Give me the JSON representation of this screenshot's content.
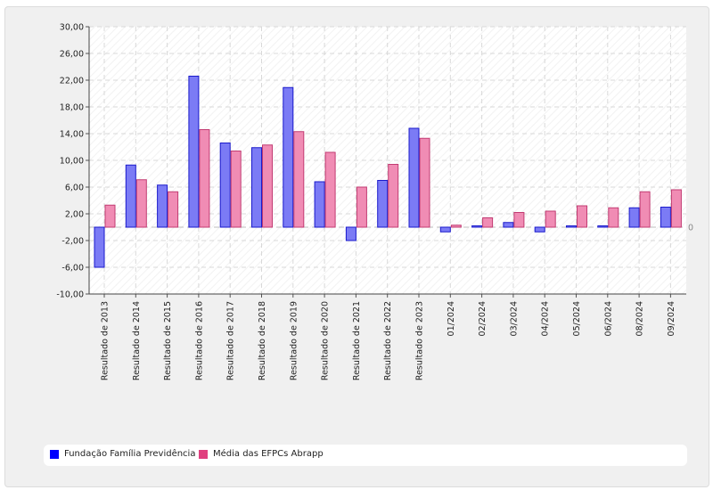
{
  "chart_data": {
    "type": "bar",
    "title": "",
    "xlabel": "",
    "ylabel": "",
    "ylim": [
      -10,
      30
    ],
    "yticks": [
      "30,00",
      "26,00",
      "22,00",
      "18,00",
      "14,00",
      "10,00",
      "6,00",
      "2,00",
      "-2,00",
      "-6,00",
      "-10,00"
    ],
    "baseline_label": "0",
    "categories": [
      "Resultado de 2013",
      "Resultado de 2014",
      "Resultado de 2015",
      "Resultado de 2016",
      "Resultado de 2017",
      "Resultado de 2018",
      "Resultado de 2019",
      "Resultado de 2020",
      "Resultado de 2021",
      "Resultado de 2022",
      "Resultado de 2023",
      "01/2024",
      "02/2024",
      "03/2024",
      "04/2024",
      "05/2024",
      "06/2024",
      "08/2024",
      "09/2024"
    ],
    "series": [
      {
        "name": "Fundação Família Previdência",
        "color": "#0000ff",
        "values": [
          -6.0,
          9.3,
          6.3,
          22.6,
          12.6,
          11.9,
          20.9,
          6.8,
          -2.0,
          7.0,
          14.8,
          -0.7,
          0.2,
          0.7,
          -0.7,
          0.2,
          0.2,
          2.9,
          3.0
        ]
      },
      {
        "name": "Média das EFPCs Abrapp",
        "color": "#e0407f",
        "values": [
          3.3,
          7.1,
          5.3,
          14.6,
          11.4,
          12.3,
          14.3,
          11.2,
          6.0,
          9.4,
          13.3,
          0.3,
          1.4,
          2.2,
          2.4,
          3.2,
          2.9,
          5.3,
          5.6
        ]
      }
    ],
    "grid": true,
    "legend_position": "bottom"
  }
}
